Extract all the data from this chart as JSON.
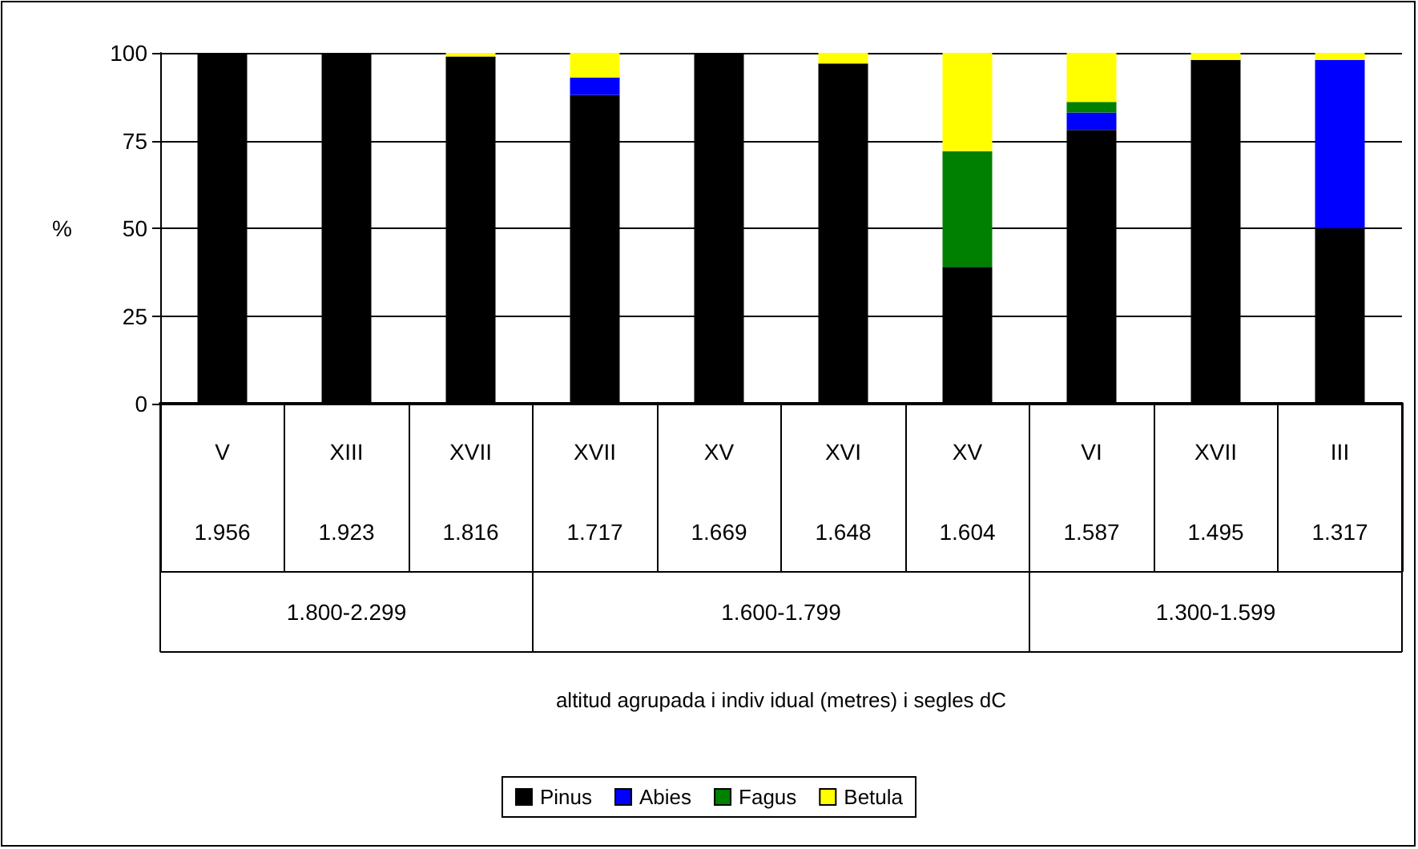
{
  "chart_data": {
    "type": "bar",
    "stacked": true,
    "ylabel": "%",
    "categories": [
      "V\n1.956",
      "XIII\n1.923",
      "XVII\n1.816",
      "XVII\n1.717",
      "XV\n1.669",
      "XVI\n1.648",
      "XV\n1.604",
      "VI\n1.587",
      "XVII\n1.495",
      "III\n1.317"
    ],
    "series": [
      {
        "name": "Pinus",
        "color": "#000000",
        "values": [
          100,
          100,
          99,
          88,
          100,
          97,
          39,
          78,
          98,
          50
        ]
      },
      {
        "name": "Abies",
        "color": "#0000ff",
        "values": [
          0,
          0,
          0,
          5,
          0,
          0,
          0,
          5,
          0,
          48
        ]
      },
      {
        "name": "Fagus",
        "color": "#008000",
        "values": [
          0,
          0,
          0,
          0,
          0,
          0,
          33,
          3,
          0,
          0
        ]
      },
      {
        "name": "Betula",
        "color": "#ffff00",
        "values": [
          0,
          0,
          1,
          7,
          0,
          3,
          28,
          14,
          2,
          2
        ]
      }
    ],
    "annotations": [
      "1.800-2.299",
      "1.600-1.799",
      "1.300-1.599",
      "altitud agrupada i indiv idual (metres) i segles dC"
    ],
    "ylim": [
      0,
      100
    ],
    "yticks": [
      0,
      25,
      50,
      75,
      100
    ],
    "grid": "y",
    "legend": "bottom"
  }
}
